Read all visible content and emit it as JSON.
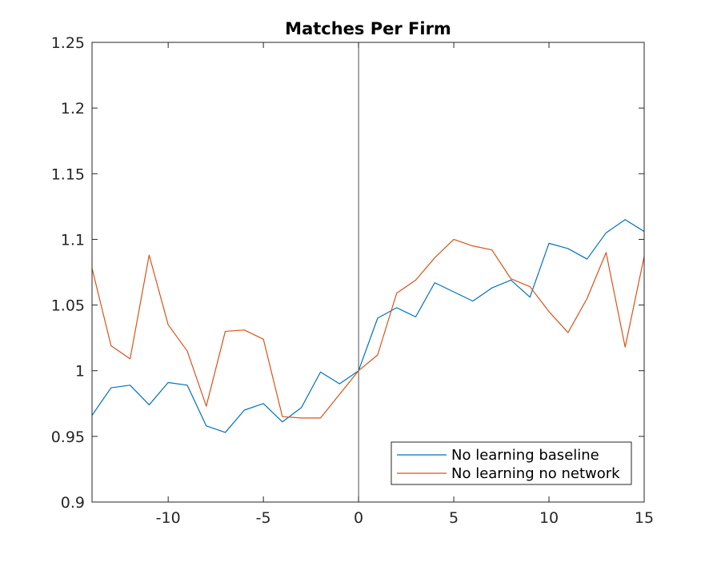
{
  "chart_data": {
    "type": "line",
    "title": "Matches Per Firm",
    "xlabel": "",
    "ylabel": "",
    "xlim": [
      -14,
      15
    ],
    "ylim": [
      0.9,
      1.25
    ],
    "xticks": [
      -10,
      -5,
      0,
      5,
      10,
      15
    ],
    "xtick_labels": [
      "-10",
      "-5",
      "0",
      "5",
      "10",
      "15"
    ],
    "yticks": [
      0.9,
      0.95,
      1,
      1.05,
      1.1,
      1.15,
      1.2,
      1.25
    ],
    "ytick_labels": [
      "0.9",
      "0.95",
      "1",
      "1.05",
      "1.1",
      "1.15",
      "1.2",
      "1.25"
    ],
    "grid": false,
    "legend_position": "bottom-right",
    "reference_line_x": 0,
    "x": [
      -14,
      -13,
      -12,
      -11,
      -10,
      -9,
      -8,
      -7,
      -6,
      -5,
      -4,
      -3,
      -2,
      -1,
      0,
      1,
      2,
      3,
      4,
      5,
      6,
      7,
      8,
      9,
      10,
      11,
      12,
      13,
      14,
      15
    ],
    "series": [
      {
        "name": "No learning baseline",
        "color": "#0072BD",
        "values": [
          0.966,
          0.987,
          0.989,
          0.974,
          0.991,
          0.989,
          0.958,
          0.953,
          0.97,
          0.975,
          0.961,
          0.972,
          0.999,
          0.99,
          1.0,
          1.04,
          1.048,
          1.041,
          1.067,
          1.06,
          1.053,
          1.063,
          1.069,
          1.056,
          1.097,
          1.093,
          1.085,
          1.105,
          1.115,
          1.106
        ]
      },
      {
        "name": "No learning no network",
        "color": "#D95319",
        "values": [
          1.078,
          1.019,
          1.009,
          1.088,
          1.035,
          1.015,
          0.973,
          1.03,
          1.031,
          1.024,
          0.965,
          0.964,
          0.964,
          0.982,
          1.0,
          1.012,
          1.059,
          1.069,
          1.086,
          1.1,
          1.095,
          1.092,
          1.07,
          1.064,
          1.045,
          1.029,
          1.055,
          1.09,
          1.018,
          1.087
        ]
      }
    ]
  }
}
